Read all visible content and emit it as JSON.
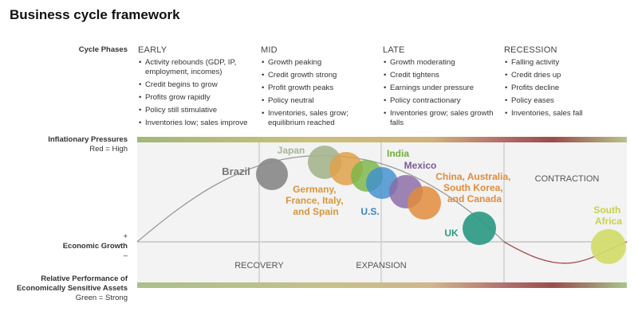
{
  "title": "Business cycle framework",
  "left_labels": {
    "cycle_phases": "Cycle Phases",
    "inflationary_pressures": "Inflationary Pressures",
    "red_high": "Red = High",
    "plus": "+",
    "economic_growth": "Economic Growth",
    "minus": "–",
    "relative_performance_line1": "Relative Performance of",
    "relative_performance_line2": "Economically Sensitive Assets",
    "green_strong": "Green = Strong"
  },
  "phases": [
    {
      "name": "EARLY",
      "items": [
        "Activity rebounds (GDP, IP, employment, incomes)",
        "Credit begins to grow",
        "Profits grow rapidly",
        "Policy still stimulative",
        "Inventories low; sales improve"
      ]
    },
    {
      "name": "MID",
      "items": [
        "Growth peaking",
        "Credit growth strong",
        "Profit growth peaks",
        "Policy neutral",
        "Inventories, sales grow; equilibrium reached"
      ]
    },
    {
      "name": "LATE",
      "items": [
        "Growth moderating",
        "Credit tightens",
        "Earnings under pressure",
        "Policy contractionary",
        "Inventories grow; sales growth falls"
      ]
    },
    {
      "name": "RECESSION",
      "items": [
        "Falling activity",
        "Credit dries up",
        "Profits decline",
        "Policy eases",
        "Inventories, sales fall"
      ]
    }
  ],
  "chart_labels": {
    "contraction": "CONTRACTION",
    "recovery": "RECOVERY",
    "expansion": "EXPANSION"
  },
  "countries": [
    {
      "name": "Brazil",
      "color": "#8a8a8a"
    },
    {
      "name": "Japan",
      "color": "#a5b58f"
    },
    {
      "name": "Germany, France, Italy, and Spain",
      "color": "#dfa04a"
    },
    {
      "name": "India",
      "color": "#7ab648"
    },
    {
      "name": "U.S.",
      "color": "#3f8fd0"
    },
    {
      "name": "Mexico",
      "color": "#8a6aa6"
    },
    {
      "name": "China, Australia, South Korea, and Canada",
      "color": "#e08c3c"
    },
    {
      "name": "UK",
      "color": "#2f9a85"
    },
    {
      "name": "South Africa",
      "color": "#c9d45a"
    }
  ],
  "colors": {
    "green": "#8fb06a",
    "yellow": "#c8b45a",
    "red": "#a04848",
    "divider": "#b0b0b0"
  }
}
